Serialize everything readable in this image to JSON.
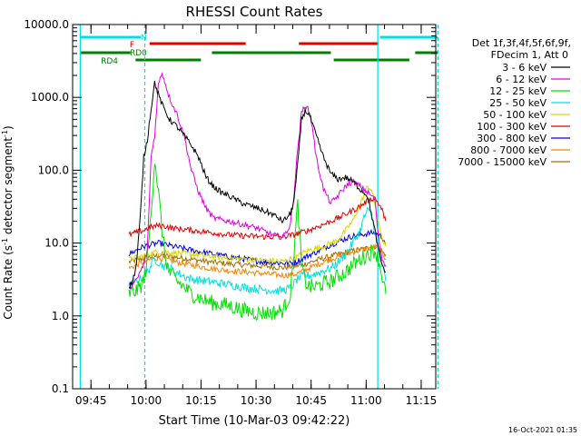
{
  "chart_data": {
    "type": "line",
    "title": "RHESSI Count Rates",
    "xlabel": "Start Time (10-Mar-03 09:42:22)",
    "ylabel_main": "Count Rate (s",
    "ylabel_sup1": "-1",
    "ylabel_mid": " detector segment",
    "ylabel_sup2": "-1",
    "ylabel_end": ")",
    "y_scale": "log",
    "ylim": [
      0.1,
      10000
    ],
    "xlim_minutes": [
      -2.37,
      96.6
    ],
    "x_tick_labels": [
      "09:45",
      "10:00",
      "10:15",
      "10:30",
      "10:45",
      "11:00",
      "11:15"
    ],
    "x_tick_minutes": [
      2.63,
      17.63,
      32.63,
      47.63,
      62.63,
      77.63,
      92.63
    ],
    "y_tick_labels": [
      "0.1",
      "1.0",
      "10.0",
      "100.0",
      "1000.0",
      "10000.0"
    ],
    "y_tick_values": [
      0.1,
      1,
      10,
      100,
      1000,
      10000
    ],
    "timestamp": "16-Oct-2021 01:35",
    "legend": {
      "header1": "Det 1f,3f,4f,5f,6f,9f,",
      "header2": "FDecim 1, Att 0",
      "entries": [
        {
          "label": "3 - 6 keV",
          "color": "#000000"
        },
        {
          "label": "6 - 12 keV",
          "color": "#e000e0"
        },
        {
          "label": "12 - 25 keV",
          "color": "#00e000"
        },
        {
          "label": "25 - 50 keV",
          "color": "#00e0e0"
        },
        {
          "label": "50 - 100 keV",
          "color": "#d8d800"
        },
        {
          "label": "100 - 300 keV",
          "color": "#e00000"
        },
        {
          "label": "300 - 800 keV",
          "color": "#0000e0"
        },
        {
          "label": "800 - 7000 keV",
          "color": "#ff8000"
        },
        {
          "label": "7000 - 15000 keV",
          "color": "#a07000"
        }
      ]
    },
    "flags": [
      {
        "label": "N",
        "color": "#00e0e0",
        "segments": [
          [
            -0.4,
            16.2
          ],
          [
            81.4,
            97.1
          ]
        ]
      },
      {
        "label": "F",
        "color": "#e00000",
        "segments": [
          [
            18.6,
            44.8
          ],
          [
            59.3,
            81.0
          ]
        ]
      },
      {
        "label": "RD0",
        "color": "#008000",
        "segments": [
          [
            -0.4,
            13.4
          ],
          [
            35.6,
            68.0
          ],
          [
            91.0,
            97.1
          ]
        ]
      },
      {
        "label": "RD4",
        "color": "#008000",
        "segments": [
          [
            14.8,
            32.6
          ],
          [
            68.8,
            89.4
          ]
        ]
      }
    ],
    "vlines": [
      {
        "minute": -0.3,
        "color": "#00e0e0",
        "style": "solid"
      },
      {
        "minute": 17.3,
        "color": "#00e0e0",
        "style": "dashed"
      },
      {
        "minute": 80.8,
        "color": "#00e0e0",
        "style": "solid"
      },
      {
        "minute": 97.2,
        "color": "#00e0e0",
        "style": "dashed"
      }
    ],
    "series": [
      {
        "name": "3 - 6 keV",
        "color": "#000000",
        "x": [
          13,
          14,
          15,
          16,
          17,
          18,
          19,
          20,
          21,
          22,
          24,
          26,
          28,
          30,
          32,
          34,
          36,
          38,
          40,
          44,
          48,
          52,
          55,
          57,
          58,
          59,
          60,
          61,
          62,
          64,
          66,
          68,
          70,
          72,
          74,
          76,
          78,
          80,
          81,
          82,
          83
        ],
        "y": [
          2.5,
          3,
          5,
          20,
          150,
          260,
          700,
          1600,
          1100,
          800,
          500,
          400,
          300,
          220,
          150,
          80,
          60,
          50,
          45,
          35,
          30,
          25,
          20,
          25,
          40,
          120,
          500,
          650,
          600,
          300,
          150,
          90,
          75,
          80,
          70,
          55,
          45,
          15,
          8,
          5,
          4
        ]
      },
      {
        "name": "6 - 12 keV",
        "color": "#e000e0",
        "x": [
          13,
          15,
          16,
          17,
          18,
          19,
          20,
          21,
          22,
          23,
          24,
          26,
          28,
          30,
          32,
          34,
          36,
          40,
          44,
          48,
          52,
          55,
          57,
          58,
          59,
          60,
          61,
          62,
          63,
          64,
          66,
          68,
          70,
          72,
          74,
          76,
          78,
          80,
          81,
          82,
          83
        ],
        "y": [
          2.5,
          3,
          4,
          5,
          8,
          150,
          300,
          1500,
          2200,
          1500,
          1000,
          600,
          300,
          100,
          50,
          30,
          22,
          20,
          18,
          16,
          13,
          12,
          18,
          50,
          200,
          600,
          800,
          650,
          400,
          150,
          55,
          35,
          45,
          60,
          70,
          60,
          50,
          40,
          12,
          6,
          5
        ]
      },
      {
        "name": "12 - 25 keV",
        "color": "#00e000",
        "x": [
          13,
          15,
          16,
          17,
          18,
          19,
          20,
          21,
          22,
          23,
          24,
          26,
          28,
          30,
          32,
          34,
          36,
          40,
          44,
          48,
          52,
          55,
          57,
          58,
          59,
          60,
          61,
          62,
          64,
          66,
          68,
          70,
          72,
          74,
          76,
          78,
          80,
          81,
          82,
          83
        ],
        "y": [
          2,
          2.2,
          2.5,
          3,
          6,
          25,
          150,
          50,
          15,
          6,
          4,
          3,
          2.5,
          2,
          1.8,
          1.6,
          1.5,
          1.4,
          1.2,
          1.1,
          1.1,
          1.2,
          2,
          8,
          35,
          5,
          3,
          2.5,
          2.5,
          2.8,
          3,
          3.5,
          4,
          5,
          6,
          7,
          8,
          6,
          3.5,
          2
        ]
      },
      {
        "name": "25 - 50 keV",
        "color": "#00e0e0",
        "x": [
          13,
          15,
          17,
          18,
          19,
          20,
          21,
          22,
          24,
          26,
          28,
          30,
          34,
          38,
          42,
          46,
          50,
          54,
          57,
          58,
          59,
          60,
          62,
          64,
          66,
          68,
          70,
          72,
          74,
          76,
          77,
          78,
          79,
          80,
          81,
          82,
          83
        ],
        "y": [
          2.6,
          3,
          3.5,
          4,
          5,
          6,
          5.5,
          5,
          4.5,
          4,
          3.5,
          3.2,
          3,
          2.8,
          2.6,
          2.4,
          2.3,
          2.2,
          2.4,
          2.8,
          3.2,
          3.5,
          3.6,
          3.8,
          4.2,
          4.5,
          5.5,
          7,
          10,
          15,
          22,
          28,
          25,
          15,
          7,
          5,
          3
        ]
      },
      {
        "name": "50 - 100 keV",
        "color": "#d8d800",
        "x": [
          13,
          16,
          18,
          20,
          22,
          25,
          30,
          35,
          40,
          45,
          50,
          55,
          57,
          59,
          60,
          62,
          66,
          70,
          74,
          77,
          78,
          79,
          80,
          81,
          82,
          83
        ],
        "y": [
          6,
          6.5,
          7,
          7.5,
          7.6,
          7.4,
          7,
          6.6,
          6.2,
          6,
          5.8,
          5.6,
          6,
          6.5,
          7.2,
          8,
          9,
          11,
          20,
          45,
          60,
          55,
          35,
          18,
          12,
          9
        ]
      },
      {
        "name": "100 - 300 keV",
        "color": "#e00000",
        "x": [
          13,
          15,
          17,
          19,
          21,
          23,
          25,
          30,
          35,
          40,
          45,
          50,
          55,
          58,
          60,
          62,
          64,
          66,
          68,
          70,
          72,
          74,
          76,
          78,
          80,
          81,
          82,
          83
        ],
        "y": [
          13,
          14,
          15,
          16.5,
          17.5,
          17,
          16,
          15,
          14,
          13,
          12.5,
          12.2,
          12.2,
          13,
          14,
          15,
          16.5,
          18,
          20,
          22,
          25,
          28,
          32,
          38,
          42,
          35,
          28,
          20
        ]
      },
      {
        "name": "300 - 800 keV",
        "color": "#0000e0",
        "x": [
          13,
          15,
          17,
          19,
          21,
          23,
          25,
          30,
          35,
          40,
          45,
          50,
          55,
          58,
          60,
          62,
          64,
          66,
          68,
          70,
          72,
          74,
          76,
          78,
          80,
          81,
          82,
          83
        ],
        "y": [
          7,
          8,
          9,
          9.5,
          10,
          9.5,
          9,
          8,
          7.2,
          6.5,
          6,
          5.5,
          5.3,
          5.4,
          6,
          6.8,
          7.5,
          8.5,
          9.5,
          10.5,
          11.5,
          12.5,
          13,
          13.5,
          14,
          13,
          12,
          10
        ]
      },
      {
        "name": "800 - 7000 keV",
        "color": "#ff8000",
        "x": [
          13,
          15,
          17,
          19,
          21,
          23,
          25,
          30,
          35,
          40,
          45,
          50,
          55,
          58,
          60,
          62,
          64,
          66,
          68,
          70,
          72,
          74,
          76,
          78,
          80,
          81,
          82,
          83
        ],
        "y": [
          4.5,
          5,
          5.5,
          6,
          6.3,
          6,
          5.6,
          5,
          4.5,
          4.2,
          4,
          3.8,
          3.6,
          3.7,
          4,
          4.5,
          5,
          5.5,
          6,
          6.5,
          7,
          7.5,
          8,
          8.5,
          9,
          8.5,
          7.5,
          6
        ]
      },
      {
        "name": "7000 - 15000 keV",
        "color": "#a07000",
        "x": [
          13,
          16,
          19,
          22,
          25,
          30,
          35,
          40,
          45,
          50,
          55,
          60,
          65,
          70,
          75,
          78,
          80,
          81,
          82,
          83
        ],
        "y": [
          5.5,
          6,
          6.5,
          6.8,
          6.5,
          6,
          5.5,
          5.2,
          5,
          4.8,
          4.6,
          5,
          6,
          7,
          8,
          8.5,
          9,
          8.5,
          7.5,
          7
        ]
      }
    ]
  }
}
